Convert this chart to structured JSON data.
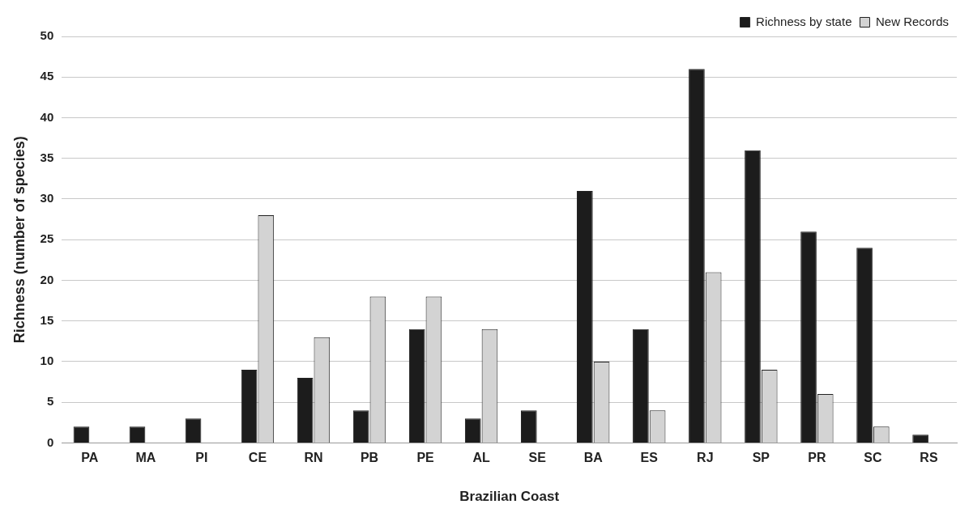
{
  "chart_data": {
    "type": "bar",
    "xlabel": "Brazilian Coast",
    "ylabel": "Richness (number of species)",
    "categories": [
      "PA",
      "MA",
      "PI",
      "CE",
      "RN",
      "PB",
      "PE",
      "AL",
      "SE",
      "BA",
      "ES",
      "RJ",
      "SP",
      "PR",
      "SC",
      "RS"
    ],
    "series": [
      {
        "name": "Richness by state",
        "color": "#1c1c1c",
        "values": [
          2,
          2,
          3,
          9,
          8,
          4,
          14,
          3,
          4,
          31,
          14,
          46,
          36,
          26,
          24,
          1
        ]
      },
      {
        "name": "New Records",
        "color": "#d3d3d3",
        "values": [
          null,
          null,
          null,
          28,
          13,
          18,
          18,
          14,
          null,
          10,
          4,
          21,
          9,
          6,
          2,
          null
        ]
      }
    ],
    "ylim": [
      0,
      50
    ],
    "yticks": [
      0,
      5,
      10,
      15,
      20,
      25,
      30,
      35,
      40,
      45,
      50
    ],
    "grid": "y",
    "legend": "top right"
  }
}
